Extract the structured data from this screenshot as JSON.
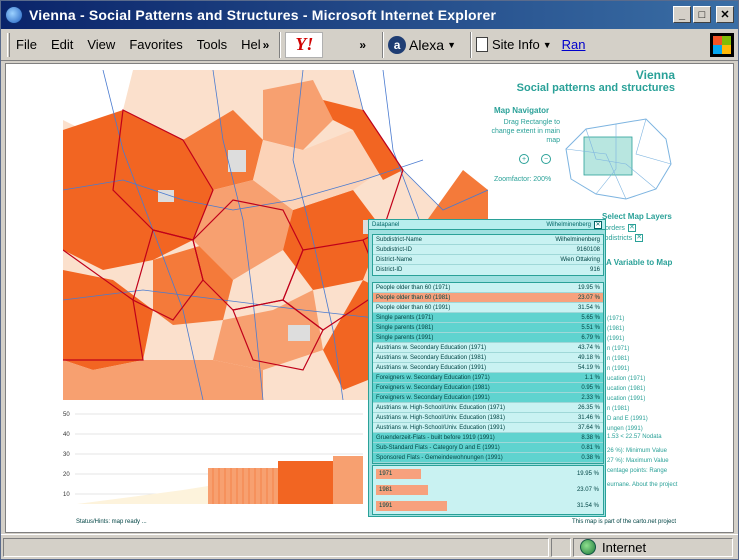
{
  "window": {
    "title": "Vienna - Social Patterns and Structures - Microsoft Internet Explorer"
  },
  "menu": {
    "items": [
      "File",
      "Edit",
      "View",
      "Favorites",
      "Tools",
      "Hel"
    ],
    "more": "»",
    "yahoo": "Y!",
    "more2": "»",
    "alexa": "Alexa",
    "siteinfo": "Site Info",
    "ran": "Ran"
  },
  "page": {
    "title": "Vienna",
    "subtitle": "Social patterns and structures",
    "navigator_title": "Map Navigator",
    "navigator_help": "Drag Rectangle to change extent in main map",
    "zoomfactor": "Zoomfactor: 200%",
    "layers_title": "Select Map Layers",
    "layers": [
      "Gruenderzeit Borders",
      "Subdistricts"
    ],
    "variable_title": "A Variable to Map",
    "status_hint": "Status/Hints: map ready ...",
    "copyright": "This map is part of the carto.net project"
  },
  "datapanel": {
    "title": "Datapanel",
    "name": "Wilhelminenberg",
    "info": [
      {
        "label": "Subdistrict-Name",
        "value": "Wilhelminenberg"
      },
      {
        "label": "Subdistrict-ID",
        "value": "9160108"
      },
      {
        "label": "District-Name",
        "value": "Wien Ottakring"
      },
      {
        "label": "District-ID",
        "value": "916"
      }
    ],
    "rows": [
      {
        "label": "People older than 60 (1971)",
        "value": "19.95 %"
      },
      {
        "label": "People older than 60 (1981)",
        "value": "23.07 %"
      },
      {
        "label": "People older than 60 (1991)",
        "value": "31.54 %"
      },
      {
        "label": "Single parents (1971)",
        "value": "5.65 %"
      },
      {
        "label": "Single parents (1981)",
        "value": "5.51 %"
      },
      {
        "label": "Single parents (1991)",
        "value": "6.79 %"
      },
      {
        "label": "Austrians w. Secondary Education (1971)",
        "value": "43.74 %"
      },
      {
        "label": "Austrians w. Secondary Education (1981)",
        "value": "49.18 %"
      },
      {
        "label": "Austrians w. Secondary Education (1991)",
        "value": "54.19 %"
      },
      {
        "label": "Foreigners w. Secondary Education (1971)",
        "value": "1.1 %"
      },
      {
        "label": "Foreigners w. Secondary Education (1981)",
        "value": "0.95 %"
      },
      {
        "label": "Foreigners w. Secondary Education (1991)",
        "value": "2.33 %"
      },
      {
        "label": "Austrians w. High-School/Univ. Education (1971)",
        "value": "26.35 %"
      },
      {
        "label": "Austrians w. High-School/Univ. Education (1981)",
        "value": "31.46 %"
      },
      {
        "label": "Austrians w. High-School/Univ. Education (1991)",
        "value": "37.64 %"
      },
      {
        "label": "Gruenderzeit-Flats - built before 1919 (1991)",
        "value": "8.38 %"
      },
      {
        "label": "Sub-Standard Flats - Category D and E (1991)",
        "value": "0.81 %"
      },
      {
        "label": "Sponsored Flats - Gemeindewohnungen (1991)",
        "value": "0.38 %"
      }
    ],
    "bars": [
      {
        "label": "1971",
        "value": "19.95 %",
        "fraction": 0.2
      },
      {
        "label": "1981",
        "value": "23.07 %",
        "fraction": 0.23
      },
      {
        "label": "1991",
        "value": "31.54 %",
        "fraction": 0.315
      }
    ]
  },
  "right_fragments": [
    "(1971)",
    "(1981)",
    "(1991)",
    "n (1971)",
    "n (1981)",
    "n (1991)",
    "ucation (1971)",
    "ucation (1981)",
    "ucation (1991)",
    "n (1981)",
    "D and E (1991)",
    "ungen (1991)",
    "1.53   < 22.57   Nodata",
    "26 %): Minimum Value",
    "27 %): Maximum Value",
    "centage points: Range",
    "eurnane. About the project"
  ],
  "bottom_chart": {
    "y_ticks": [
      "50",
      "40",
      "30",
      "20",
      "10"
    ]
  },
  "status": {
    "zone": "Internet"
  },
  "colors": {
    "accent": "#2aa198",
    "map_dark": "#f26522",
    "map_mid": "#f7a070",
    "map_light": "#fcd3b8"
  }
}
